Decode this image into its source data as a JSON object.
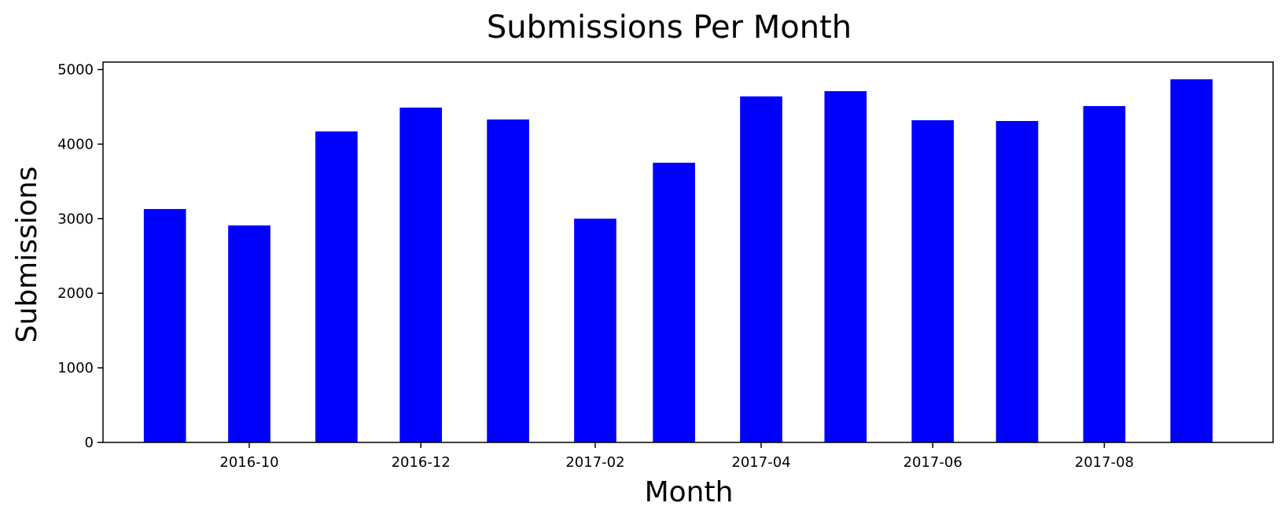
{
  "chart_data": {
    "type": "bar",
    "title": "Submissions Per Month",
    "xlabel": "Month",
    "ylabel": "Submissions",
    "x": [
      "2016-09",
      "2016-10",
      "2016-11",
      "2016-12",
      "2017-01",
      "2017-02",
      "2017-03",
      "2017-04",
      "2017-05",
      "2017-06",
      "2017-07",
      "2017-08",
      "2017-09"
    ],
    "values": [
      3130,
      2910,
      4170,
      4490,
      4330,
      3000,
      3750,
      4640,
      4710,
      4320,
      4310,
      4510,
      4870
    ],
    "xticks": [
      "2016-10",
      "2016-12",
      "2017-02",
      "2017-04",
      "2017-06",
      "2017-08"
    ],
    "yticks": [
      0,
      1000,
      2000,
      3000,
      4000,
      5000
    ],
    "ylim": [
      0,
      5100
    ],
    "xlim": [
      "2016-08-10",
      "2017-09-30"
    ],
    "bar_color": "#0000ff",
    "grid": false,
    "legend": "none"
  }
}
